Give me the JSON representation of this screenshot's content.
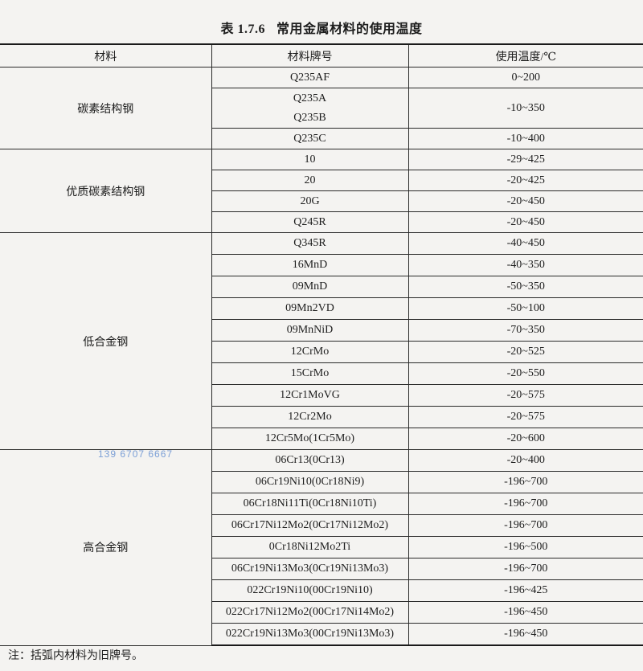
{
  "table": {
    "number": "表 1.7.6",
    "title": "常用金属材料的使用温度",
    "headers": [
      "材料",
      "材料牌号",
      "使用温度/℃"
    ],
    "groups": [
      {
        "category": "碳素结构钢",
        "rows": [
          {
            "grade": "Q235AF",
            "temp": "0~200"
          },
          {
            "grade": "Q235A",
            "grade2": "Q235B",
            "temp": "-10~350"
          },
          {
            "grade": "Q235C",
            "temp": "-10~400"
          }
        ]
      },
      {
        "category": "优质碳素结构钢",
        "rows": [
          {
            "grade": "10",
            "temp": "-29~425"
          },
          {
            "grade": "20",
            "temp": "-20~425"
          },
          {
            "grade": "20G",
            "temp": "-20~450"
          },
          {
            "grade": "Q245R",
            "temp": "-20~450"
          }
        ]
      },
      {
        "category": "低合金钢",
        "rows": [
          {
            "grade": "Q345R",
            "temp": "-40~450"
          },
          {
            "grade": "16MnD",
            "temp": "-40~350"
          },
          {
            "grade": "09MnD",
            "temp": "-50~350"
          },
          {
            "grade": "09Mn2VD",
            "temp": "-50~100"
          },
          {
            "grade": "09MnNiD",
            "temp": "-70~350"
          },
          {
            "grade": "12CrMo",
            "temp": "-20~525"
          },
          {
            "grade": "15CrMo",
            "temp": "-20~550"
          },
          {
            "grade": "12Cr1MoVG",
            "temp": "-20~575"
          },
          {
            "grade": "12Cr2Mo",
            "temp": "-20~575"
          },
          {
            "grade": "12Cr5Mo(1Cr5Mo)",
            "temp": "-20~600"
          }
        ]
      },
      {
        "category": "高合金钢",
        "rows": [
          {
            "grade": "06Cr13(0Cr13)",
            "temp": "-20~400"
          },
          {
            "grade": "06Cr19Ni10(0Cr18Ni9)",
            "temp": "-196~700"
          },
          {
            "grade": "06Cr18Ni11Ti(0Cr18Ni10Ti)",
            "temp": "-196~700"
          },
          {
            "grade": "06Cr17Ni12Mo2(0Cr17Ni12Mo2)",
            "temp": "-196~700"
          },
          {
            "grade": "0Cr18Ni12Mo2Ti",
            "temp": "-196~500"
          },
          {
            "grade": "06Cr19Ni13Mo3(0Cr19Ni13Mo3)",
            "temp": "-196~700"
          },
          {
            "grade": "022Cr19Ni10(00Cr19Ni10)",
            "temp": "-196~425"
          },
          {
            "grade": "022Cr17Ni12Mo2(00Cr17Ni14Mo2)",
            "temp": "-196~450"
          },
          {
            "grade": "022Cr19Ni13Mo3(00Cr19Ni13Mo3)",
            "temp": "-196~450"
          }
        ]
      }
    ],
    "note": "注：括弧内材料为旧牌号。"
  },
  "watermark": "139 6707 6667"
}
